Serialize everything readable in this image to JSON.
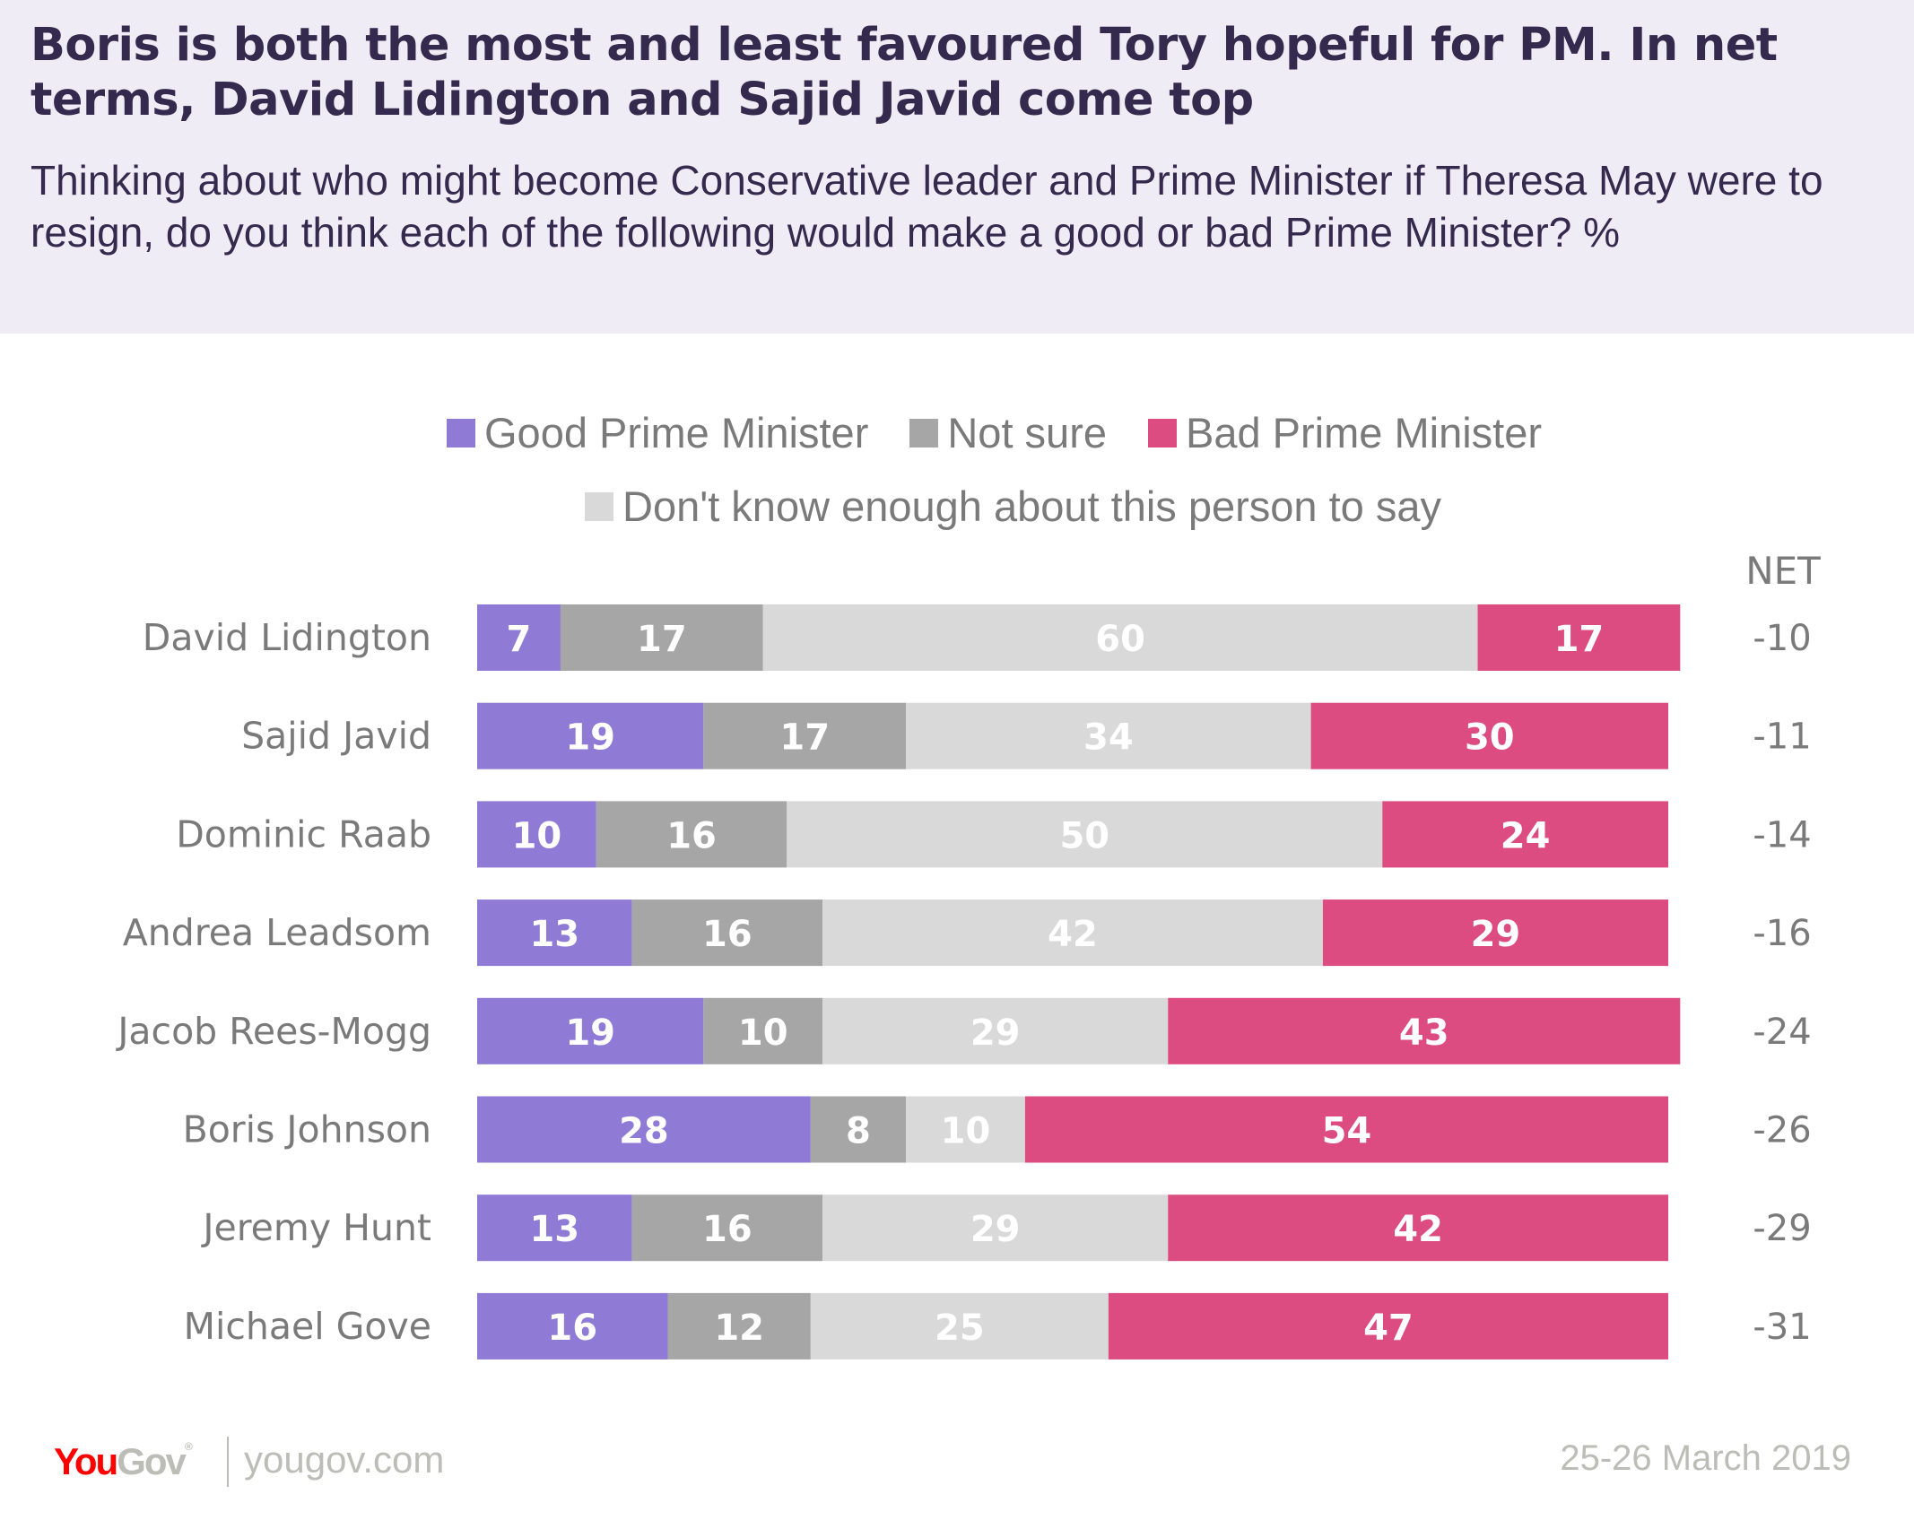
{
  "header": {
    "title": "Boris is both the most and least favoured Tory hopeful for PM. In net terms, David Lidington and Sajid Javid come top",
    "subtitle": "Thinking about who might become Conservative leader and Prime Minister if Theresa May were to resign, do you think each of the following would make a good or bad Prime Minister? %"
  },
  "legend": [
    {
      "label": "Good Prime Minister",
      "color": "#8f7ad6"
    },
    {
      "label": "Not sure",
      "color": "#a6a6a6"
    },
    {
      "label": "Bad Prime Minister",
      "color": "#dd4c80"
    },
    {
      "label": "Don't know enough about this person to say",
      "color": "#d9d9d9"
    }
  ],
  "net_header": "NET",
  "footer": {
    "logo_you": "You",
    "logo_gov": "Gov",
    "logo_reg": "®",
    "url": "yougov.com",
    "date": "25-26 March 2019"
  },
  "chart_data": {
    "type": "bar",
    "orientation": "horizontal",
    "stacked": true,
    "title": "Boris is both the most and least favoured Tory hopeful for PM. In net terms, David Lidington and Sajid Javid come top",
    "subtitle": "Thinking about who might become Conservative leader and Prime Minister if Theresa May were to resign, do you think each of the following would make a good or bad Prime Minister? %",
    "xlabel": "",
    "ylabel": "",
    "xlim": [
      0,
      100
    ],
    "grid": false,
    "legend_position": "top",
    "categories": [
      "David Lidington",
      "Sajid Javid",
      "Dominic Raab",
      "Andrea Leadsom",
      "Jacob Rees-Mogg",
      "Boris Johnson",
      "Jeremy Hunt",
      "Michael Gove"
    ],
    "series": [
      {
        "name": "Good Prime Minister",
        "color": "#8f7ad6",
        "values": [
          7,
          19,
          10,
          13,
          19,
          28,
          13,
          16
        ]
      },
      {
        "name": "Not sure",
        "color": "#a6a6a6",
        "values": [
          17,
          17,
          16,
          16,
          10,
          8,
          16,
          12
        ]
      },
      {
        "name": "Don't know enough about this person to say",
        "color": "#d9d9d9",
        "values": [
          60,
          34,
          50,
          42,
          29,
          10,
          29,
          25
        ]
      },
      {
        "name": "Bad Prime Minister",
        "color": "#dd4c80",
        "values": [
          17,
          30,
          24,
          29,
          43,
          54,
          42,
          47
        ]
      }
    ],
    "net": {
      "label": "NET",
      "values": [
        -10,
        -11,
        -14,
        -16,
        -24,
        -26,
        -29,
        -31
      ]
    }
  }
}
